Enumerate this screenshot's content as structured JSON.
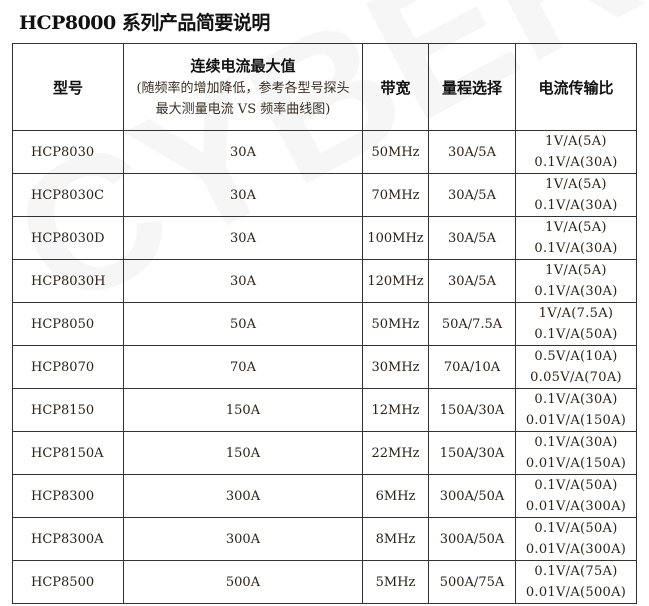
{
  "title": "HCP8000 系列产品简要说明",
  "watermark": "CYBERTEK",
  "headers": {
    "model": "型号",
    "max_current": "连续电流最大值",
    "max_current_note1": "(随频率的增加降低，参考各型号探头",
    "max_current_note2": "最大测量电流 VS 频率曲线图)",
    "bandwidth": "带宽",
    "range": "量程选择",
    "ratio": "电流传输比"
  },
  "rows": [
    {
      "model": "HCP8030",
      "current": "30A",
      "bandwidth": "50MHz",
      "range": "30A/5A",
      "ratio1": "1V/A(5A)",
      "ratio2": "0.1V/A(30A)"
    },
    {
      "model": "HCP8030C",
      "current": "30A",
      "bandwidth": "70MHz",
      "range": "30A/5A",
      "ratio1": "1V/A(5A)",
      "ratio2": "0.1V/A(30A)"
    },
    {
      "model": "HCP8030D",
      "current": "30A",
      "bandwidth": "100MHz",
      "range": "30A/5A",
      "ratio1": "1V/A(5A)",
      "ratio2": "0.1V/A(30A)"
    },
    {
      "model": "HCP8030H",
      "current": "30A",
      "bandwidth": "120MHz",
      "range": "30A/5A",
      "ratio1": "1V/A(5A)",
      "ratio2": "0.1V/A(30A)"
    },
    {
      "model": "HCP8050",
      "current": "50A",
      "bandwidth": "50MHz",
      "range": "50A/7.5A",
      "ratio1": "1V/A(7.5A)",
      "ratio2": "0.1V/A(50A)"
    },
    {
      "model": "HCP8070",
      "current": "70A",
      "bandwidth": "30MHz",
      "range": "70A/10A",
      "ratio1": "0.5V/A(10A)",
      "ratio2": "0.05V/A(70A)"
    },
    {
      "model": "HCP8150",
      "current": "150A",
      "bandwidth": "12MHz",
      "range": "150A/30A",
      "ratio1": "0.1V/A(30A)",
      "ratio2": "0.01V/A(150A)"
    },
    {
      "model": "HCP8150A",
      "current": "150A",
      "bandwidth": "22MHz",
      "range": "150A/30A",
      "ratio1": "0.1V/A(30A)",
      "ratio2": "0.01V/A(150A)"
    },
    {
      "model": "HCP8300",
      "current": "300A",
      "bandwidth": "6MHz",
      "range": "300A/50A",
      "ratio1": "0.1V/A(50A)",
      "ratio2": "0.01V/A(300A)"
    },
    {
      "model": "HCP8300A",
      "current": "300A",
      "bandwidth": "8MHz",
      "range": "300A/50A",
      "ratio1": "0.1V/A(50A)",
      "ratio2": "0.01V/A(300A)"
    },
    {
      "model": "HCP8500",
      "current": "500A",
      "bandwidth": "5MHz",
      "range": "500A/75A",
      "ratio1": "0.1V/A(75A)",
      "ratio2": "0.01V/A(500A)"
    }
  ]
}
